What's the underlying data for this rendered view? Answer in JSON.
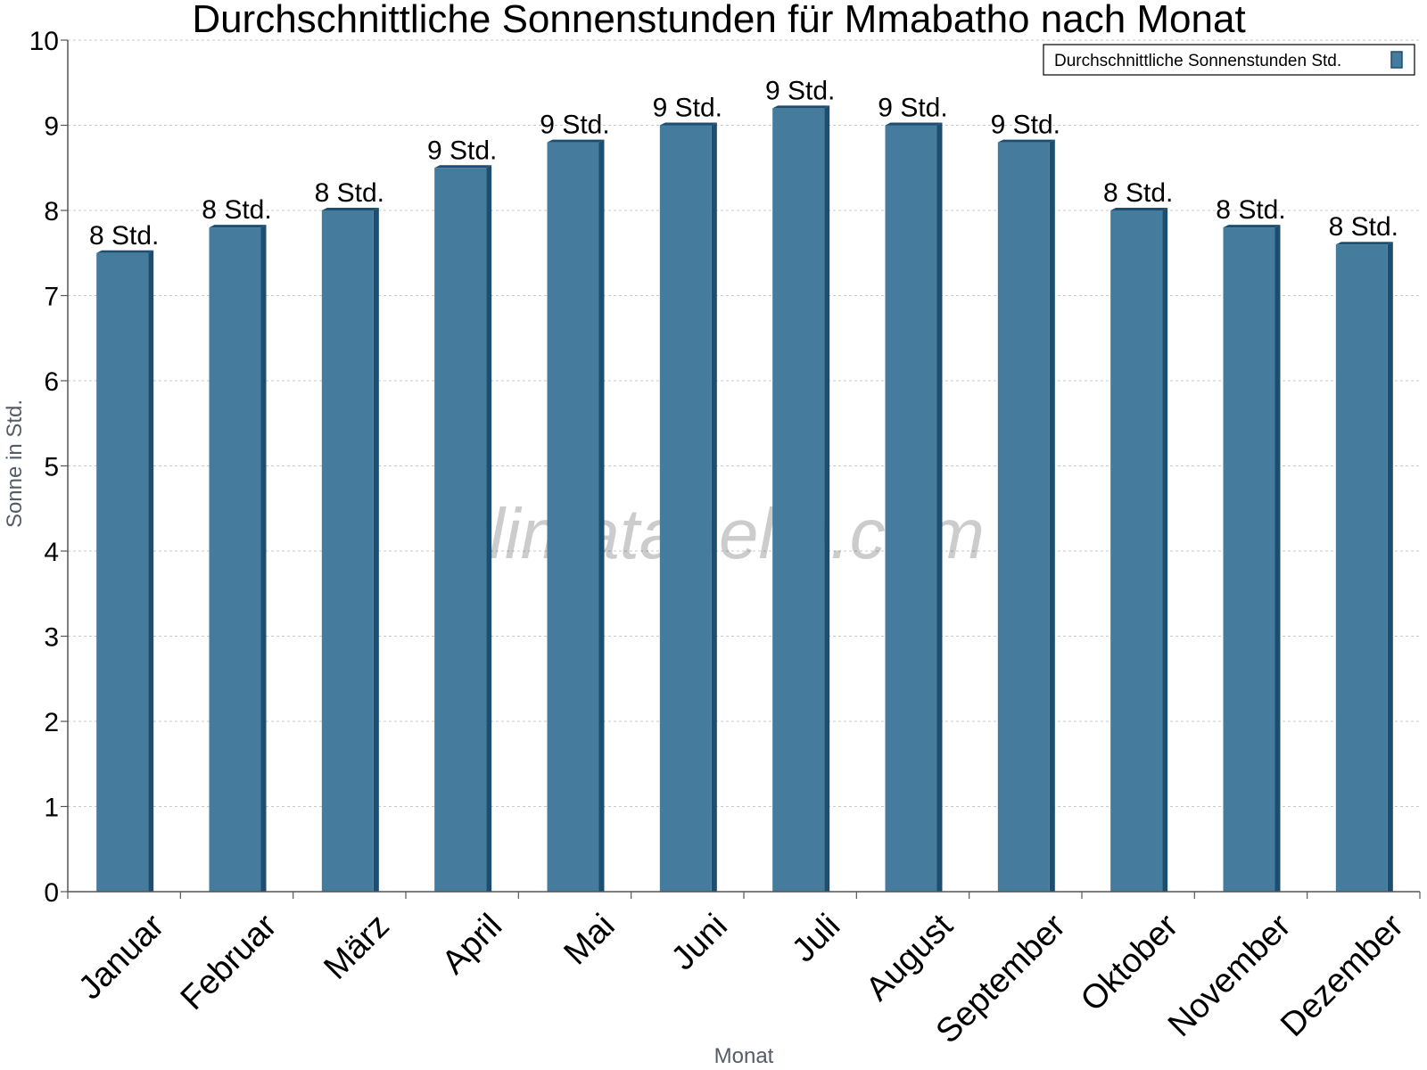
{
  "chart_data": {
    "type": "bar",
    "title": "Durchschnittliche Sonnenstunden für Mmabatho nach Monat",
    "xlabel": "Monat",
    "ylabel": "Sonne in Std.",
    "ylim": [
      0,
      10
    ],
    "yticks": [
      0,
      1,
      2,
      3,
      4,
      5,
      6,
      7,
      8,
      9,
      10
    ],
    "grid": true,
    "legend_position": "top-right",
    "categories": [
      "Januar",
      "Februar",
      "März",
      "April",
      "Mai",
      "Juni",
      "Juli",
      "August",
      "September",
      "Oktober",
      "November",
      "Dezember"
    ],
    "series": [
      {
        "name": "Durchschnittliche Sonnenstunden Std.",
        "values": [
          7.5,
          7.8,
          8.0,
          8.5,
          8.8,
          9.0,
          9.2,
          9.0,
          8.8,
          8.0,
          7.8,
          7.6
        ],
        "data_labels": [
          "8 Std.",
          "8 Std.",
          "8 Std.",
          "9 Std.",
          "9 Std.",
          "9 Std.",
          "9 Std.",
          "9 Std.",
          "9 Std.",
          "8 Std.",
          "8 Std.",
          "8 Std."
        ]
      }
    ],
    "colors": {
      "bar": "#457b9d",
      "bar_side": "#1d4e70",
      "grid": "#c8c8c8",
      "axis": "#555555"
    }
  },
  "watermark": "klimatabelle.com"
}
